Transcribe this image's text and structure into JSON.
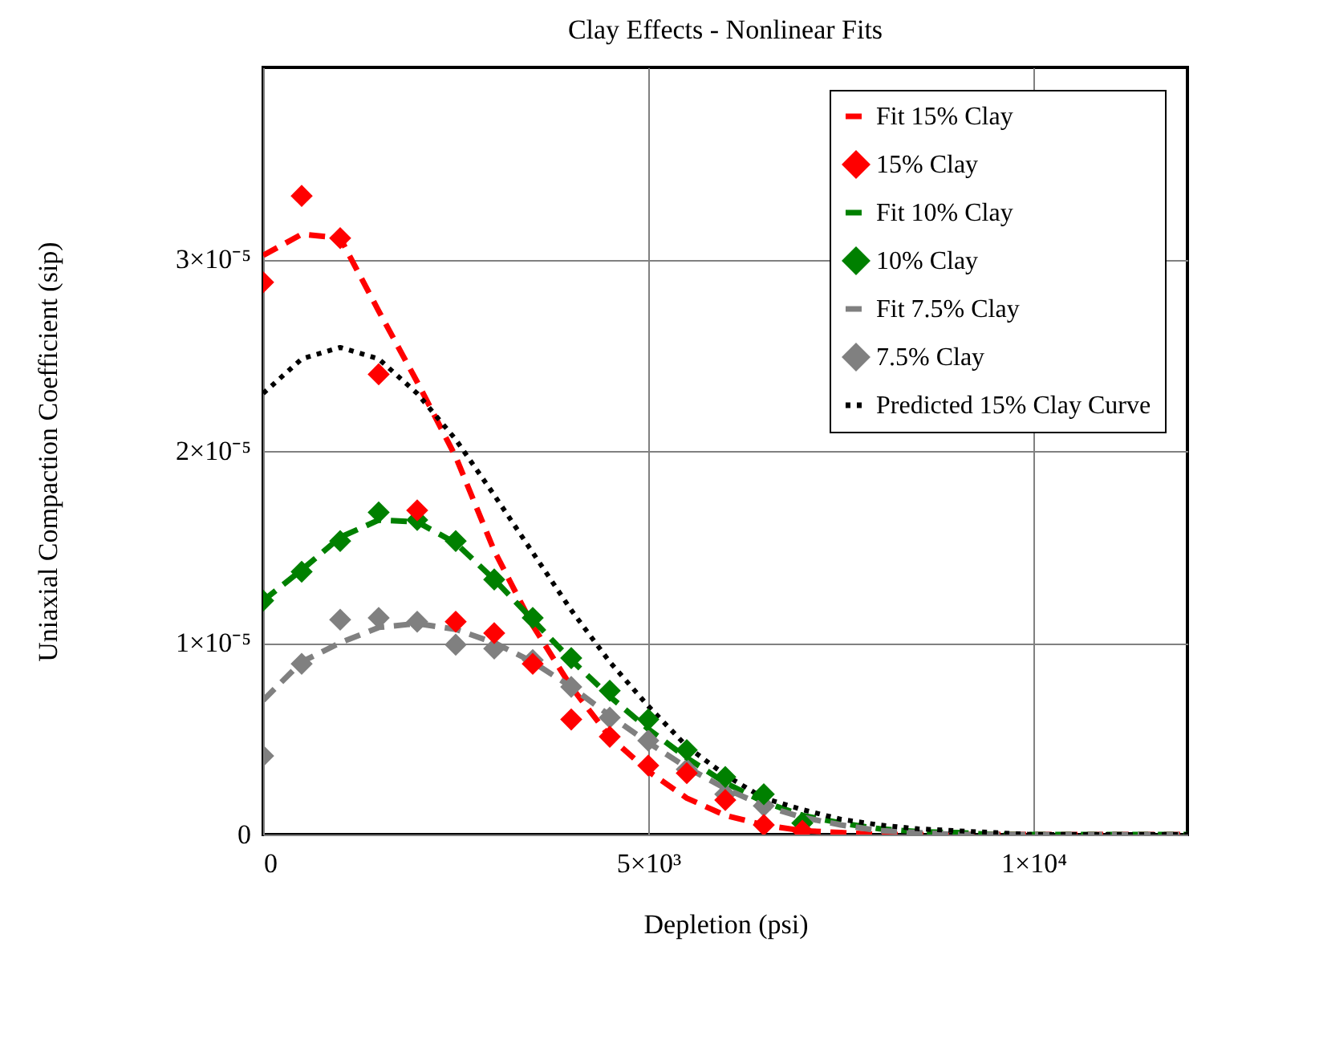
{
  "chart_data": {
    "type": "line",
    "title": "Clay Effects - Nonlinear Fits",
    "xlabel": "Depletion (psi)",
    "ylabel": "Uniaxial Compaction Coefficient (sip)",
    "x": [
      0,
      500,
      1000,
      1500,
      2000,
      2500,
      3000,
      3500,
      4000,
      4500,
      5000,
      5500,
      6000,
      6500,
      7000,
      7500,
      8000,
      8500,
      9000,
      9500,
      10000,
      10500,
      11000,
      11500,
      12000
    ],
    "series": [
      {
        "name": "Fit 15% Clay",
        "line_style": "dashed",
        "color": "#ff0000",
        "values": [
          3.02e-05,
          3.13e-05,
          3.11e-05,
          2.73e-05,
          2.36e-05,
          1.97e-05,
          1.48e-05,
          1.09e-05,
          7.7e-06,
          5.1e-06,
          3.3e-06,
          1.9e-06,
          1e-06,
          5e-07,
          2e-07,
          1e-07,
          0,
          0,
          0,
          0,
          0,
          0,
          0,
          0,
          0
        ]
      },
      {
        "name": "15% Clay",
        "type": "scatter",
        "marker": "diamond",
        "color": "#ff0000",
        "x": [
          0,
          500,
          1000,
          1500,
          2000,
          2500,
          3000,
          3500,
          4000,
          4500,
          5000,
          5500,
          6000,
          6500,
          7000
        ],
        "values": [
          2.88e-05,
          3.33e-05,
          3.11e-05,
          2.4e-05,
          1.69e-05,
          1.11e-05,
          1.05e-05,
          8.9e-06,
          6e-06,
          5.1e-06,
          3.6e-06,
          3.2e-06,
          1.8e-06,
          5e-07,
          2e-07
        ]
      },
      {
        "name": "Fit 10% Clay",
        "line_style": "dashed",
        "color": "#008000",
        "values": [
          1.22e-05,
          1.38e-05,
          1.55e-05,
          1.64e-05,
          1.63e-05,
          1.52e-05,
          1.33e-05,
          1.12e-05,
          9.1e-06,
          7.2e-06,
          5.5e-06,
          4e-06,
          2.7e-06,
          1.7e-06,
          1e-06,
          6e-07,
          3e-07,
          1.5e-07,
          1e-07,
          0,
          0,
          0,
          0,
          0,
          0
        ]
      },
      {
        "name": "10% Clay",
        "type": "scatter",
        "marker": "diamond",
        "color": "#008000",
        "x": [
          0,
          500,
          1000,
          1500,
          2000,
          2500,
          3000,
          3500,
          4000,
          4500,
          5000,
          5500,
          6000,
          6500,
          7000
        ],
        "values": [
          1.22e-05,
          1.37e-05,
          1.53e-05,
          1.68e-05,
          1.64e-05,
          1.53e-05,
          1.33e-05,
          1.13e-05,
          9.2e-06,
          7.5e-06,
          6e-06,
          4.4e-06,
          3e-06,
          2.1e-06,
          6e-07
        ]
      },
      {
        "name": "Fit 7.5% Clay",
        "line_style": "dashed",
        "color": "#808080",
        "values": [
          7e-06,
          9e-06,
          1e-05,
          1.08e-05,
          1.1e-05,
          1.07e-05,
          1e-05,
          9e-06,
          7.7e-06,
          6.2e-06,
          4.8e-06,
          3.5e-06,
          2.4e-06,
          1.5e-06,
          9e-07,
          5e-07,
          2e-07,
          1e-07,
          0,
          0,
          0,
          0,
          0,
          0,
          0
        ]
      },
      {
        "name": "7.5% Clay",
        "type": "scatter",
        "marker": "diamond",
        "color": "#808080",
        "x": [
          0,
          500,
          1000,
          1500,
          2000,
          2500,
          3000,
          3500,
          4000,
          4500,
          5000,
          5500,
          6000,
          6500
        ],
        "values": [
          4.1e-06,
          8.9e-06,
          1.12e-05,
          1.13e-05,
          1.11e-05,
          9.9e-06,
          9.7e-06,
          9.1e-06,
          7.7e-06,
          6.1e-06,
          4.9e-06,
          3.4e-06,
          2.1e-06,
          1.5e-06
        ]
      },
      {
        "name": "Predicted 15% Clay Curve",
        "line_style": "dotted",
        "color": "#000000",
        "values": [
          2.3e-05,
          2.48e-05,
          2.54e-05,
          2.48e-05,
          2.3e-05,
          2.06e-05,
          1.77e-05,
          1.47e-05,
          1.17e-05,
          9e-06,
          6.7e-06,
          4.6e-06,
          3.1e-06,
          1.9e-06,
          1.3e-06,
          8e-07,
          5e-07,
          3e-07,
          2e-07,
          1e-07,
          0,
          0,
          0,
          0,
          0
        ]
      }
    ],
    "xlim": [
      0,
      12000
    ],
    "xticks": [
      0,
      {
        "value": 5000,
        "label": "5×10³"
      },
      {
        "value": 10000,
        "label": "1×10⁴"
      }
    ],
    "ylim": [
      0,
      4e-05
    ],
    "yticks": [
      0,
      {
        "value": 1e-05,
        "label": "1×10⁻⁵"
      },
      {
        "value": 2e-05,
        "label": "2×10⁻⁵"
      },
      {
        "value": 3e-05,
        "label": "3×10⁻⁵"
      }
    ],
    "grid": true,
    "legend": "top right"
  }
}
